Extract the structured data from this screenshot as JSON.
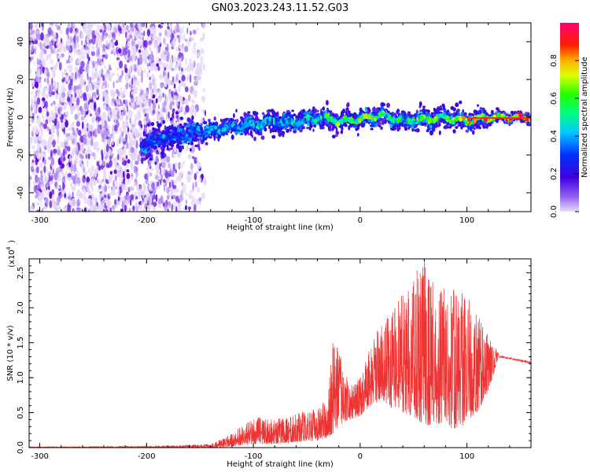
{
  "title": "GN03.2023.243.11.52.G03",
  "chart_data": [
    {
      "type": "heatmap",
      "xlabel": "Height of straight line (km)",
      "ylabel": "Frequency (Hz)",
      "xlim": [
        -310,
        160
      ],
      "ylim": [
        -50,
        50
      ],
      "xticks": [
        -300,
        -200,
        -100,
        0,
        100
      ],
      "yticks": [
        -40,
        -20,
        0,
        20,
        40
      ],
      "colorbar": {
        "label": "Normalized spectral amplitude",
        "range": [
          0,
          1
        ],
        "ticks": [
          0.0,
          0.2,
          0.4,
          0.6,
          0.8
        ],
        "colormap": "rainbow (purple-blue-cyan-green-yellow-red-magenta)"
      },
      "ridge": {
        "x": [
          -205,
          -180,
          -160,
          -140,
          -120,
          -100,
          -80,
          -60,
          -40,
          -20,
          0,
          20,
          40,
          60,
          80,
          100,
          120,
          160
        ],
        "frequency": [
          -14,
          -11,
          -8,
          -7,
          -5,
          -4,
          -2,
          -3,
          0,
          -2,
          -1,
          1,
          -2,
          -1,
          0,
          -2,
          0,
          0
        ],
        "peak_amplitude": [
          0.3,
          0.35,
          0.4,
          0.45,
          0.45,
          0.5,
          0.5,
          0.5,
          0.55,
          0.75,
          0.8,
          0.7,
          0.6,
          0.7,
          0.7,
          0.9,
          0.95,
          1.0
        ]
      },
      "noise_region_x": [
        -310,
        -155
      ],
      "colors": {
        "low": "#b08cf0",
        "mid": "#5a00e6",
        "high": "#e00000"
      }
    },
    {
      "type": "line",
      "xlabel": "Height of straight line (km)",
      "ylabel": "SNR (10 * v/v)",
      "y_scale_label": "(x10",
      "y_scale_exp": "4",
      "xlim": [
        -310,
        160
      ],
      "ylim": [
        0,
        2.7
      ],
      "xticks": [
        -300,
        -200,
        -100,
        0,
        100
      ],
      "yticks": [
        0.0,
        0.5,
        1.0,
        1.5,
        2.0,
        2.5
      ],
      "ytick_labels": [
        "0.0",
        "0.5",
        "1.0",
        "1.5",
        "2.0",
        "2.5"
      ],
      "color": "#ee3333",
      "envelope": {
        "x": [
          -310,
          -200,
          -140,
          -130,
          -120,
          -100,
          -80,
          -60,
          -40,
          -30,
          -25,
          -20,
          -10,
          0,
          10,
          20,
          30,
          40,
          50,
          60,
          70,
          80,
          90,
          100,
          110,
          120,
          128,
          130,
          160
        ],
        "upper": [
          0.01,
          0.02,
          0.05,
          0.12,
          0.2,
          0.45,
          0.4,
          0.5,
          0.55,
          0.75,
          1.6,
          1.4,
          0.9,
          1.0,
          1.5,
          1.8,
          2.0,
          2.2,
          2.55,
          2.7,
          2.5,
          2.4,
          2.3,
          2.2,
          1.9,
          1.6,
          1.4,
          1.31,
          1.22
        ],
        "lower": [
          0.0,
          0.0,
          0.0,
          0.0,
          0.02,
          0.05,
          0.05,
          0.08,
          0.1,
          0.15,
          0.2,
          0.3,
          0.4,
          0.45,
          0.6,
          0.7,
          0.55,
          0.5,
          0.45,
          0.3,
          0.35,
          0.3,
          0.25,
          0.35,
          0.5,
          0.8,
          1.2,
          1.29,
          1.2
        ]
      }
    }
  ]
}
